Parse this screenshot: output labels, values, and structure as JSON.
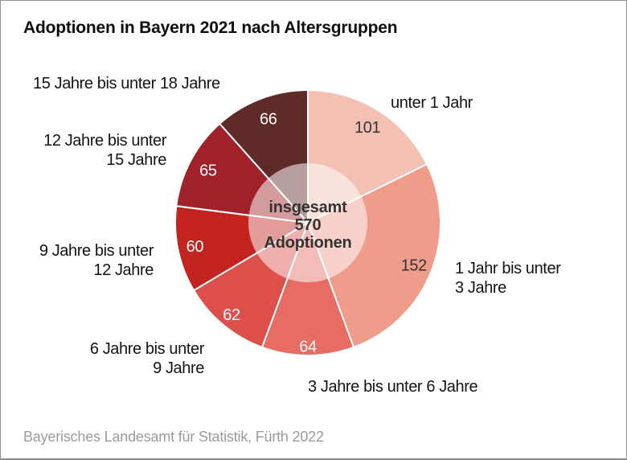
{
  "header": {
    "title": "Adoptionen in Bayern 2021 nach Altersgruppen"
  },
  "footer": {
    "source": "Bayerisches Landesamt für Statistik, Fürth 2022"
  },
  "chart_data": {
    "type": "pie",
    "title": "Adoptionen in Bayern 2021 nach Altersgruppen",
    "total": 570,
    "unit": "Adoptionen",
    "direction": "clockwise",
    "start_angle_deg": 0,
    "center_label_lines": [
      "insgesamt",
      "570",
      "Adoptionen"
    ],
    "slices": [
      {
        "label": "unter 1 Jahr",
        "label_lines": [
          "unter 1 Jahr"
        ],
        "value": 101,
        "color": "#F4C0B3",
        "value_color": "#333333"
      },
      {
        "label": "1 Jahr bis unter 3 Jahre",
        "label_lines": [
          "1 Jahr bis unter",
          "3 Jahre"
        ],
        "value": 152,
        "color": "#EF9C8B",
        "value_color": "#333333"
      },
      {
        "label": "3 Jahre bis unter 6 Jahre",
        "label_lines": [
          "3 Jahre bis unter 6 Jahre"
        ],
        "value": 64,
        "color": "#E76C63",
        "value_color": "#FFFFFF"
      },
      {
        "label": "6 Jahre bis unter 9 Jahre",
        "label_lines": [
          "6 Jahre bis unter",
          "9 Jahre"
        ],
        "value": 62,
        "color": "#DC4F4B",
        "value_color": "#FFFFFF"
      },
      {
        "label": "9 Jahre bis unter 12 Jahre",
        "label_lines": [
          "9 Jahre bis unter",
          "12 Jahre"
        ],
        "value": 60,
        "color": "#C32420",
        "value_color": "#FFFFFF"
      },
      {
        "label": "12 Jahre bis unter 15 Jahre",
        "label_lines": [
          "12 Jahre bis unter",
          "15 Jahre"
        ],
        "value": 65,
        "color": "#9F222B",
        "value_color": "#FFFFFF"
      },
      {
        "label": "15 Jahre bis unter 18 Jahre",
        "label_lines": [
          "15 Jahre bis unter 18 Jahre"
        ],
        "value": 66,
        "color": "#5F2B28",
        "value_color": "#FFFFFF"
      }
    ],
    "source": "Bayerisches Landesamt für Statistik, Fürth 2022",
    "inner_overlay_color": "#FFFFFF",
    "inner_overlay_opacity": 0.55,
    "slice_border_color": "#FFFFFF"
  }
}
